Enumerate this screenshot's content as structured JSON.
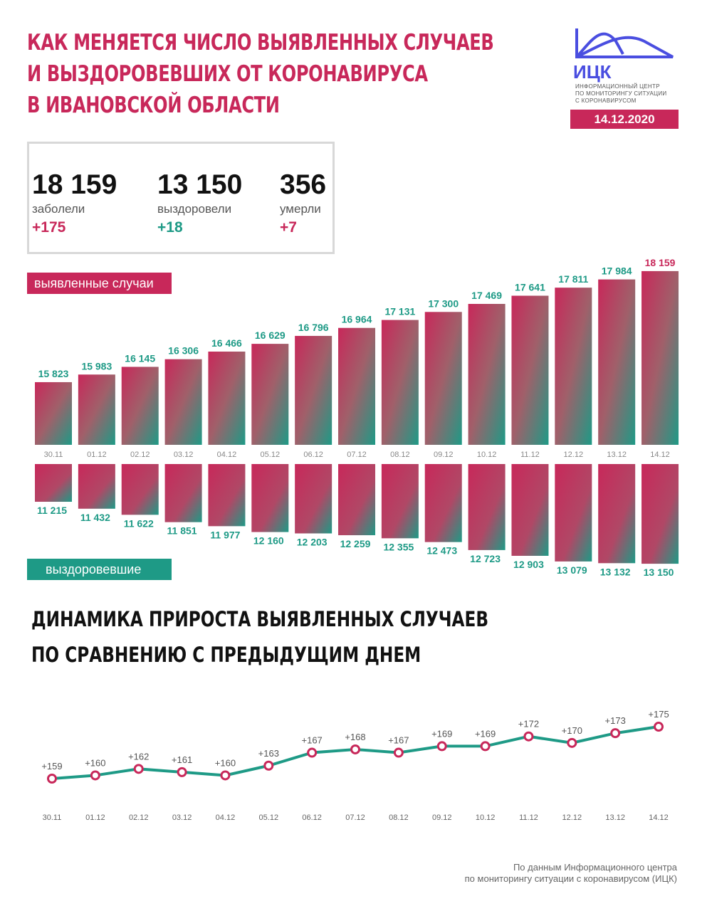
{
  "header": {
    "title_lines": [
      "КАК МЕНЯЕТСЯ ЧИСЛО ВЫЯВЛЕННЫХ СЛУЧАЕВ",
      "И ВЫЗДОРОВЕВШИХ ОТ КОРОНАВИРУСА",
      "В ИВАНОВСКОЙ ОБЛАСТИ"
    ],
    "logo_abbr": "ИЦК",
    "logo_sub": [
      "ИНФОРМАЦИОННЫЙ ЦЕНТР",
      "ПО МОНИТОРИНГУ СИТУАЦИИ",
      "С КОРОНАВИРУСОМ"
    ],
    "date": "14.12.2020"
  },
  "stats": [
    {
      "value": "18 159",
      "label": "заболели",
      "delta": "+175",
      "color": "#c8285a"
    },
    {
      "value": "13 150",
      "label": "выздоровели",
      "delta": "+18",
      "color": "#1e9a86"
    },
    {
      "value": "356",
      "label": "умерли",
      "delta": "+7",
      "color": "#c8285a"
    }
  ],
  "colors": {
    "red": "#c8285a",
    "teal": "#1e9a86"
  },
  "chart_data": [
    {
      "type": "bar",
      "title": "выявленные случаи",
      "categories": [
        "30.11",
        "01.12",
        "02.12",
        "03.12",
        "04.12",
        "05.12",
        "06.12",
        "07.12",
        "08.12",
        "09.12",
        "10.12",
        "11.12",
        "12.12",
        "13.12",
        "14.12"
      ],
      "values": [
        15823,
        15983,
        16145,
        16306,
        16466,
        16629,
        16796,
        16964,
        17131,
        17300,
        17469,
        17641,
        17811,
        17984,
        18159
      ],
      "labels": [
        "15 823",
        "15 983",
        "16 145",
        "16 306",
        "16 466",
        "16 629",
        "16 796",
        "16 964",
        "17 131",
        "17 300",
        "17 469",
        "17 641",
        "17 811",
        "17 984",
        "18 159"
      ]
    },
    {
      "type": "bar",
      "title": "выздоровевшие",
      "orientation": "downward",
      "values": [
        11215,
        11432,
        11622,
        11851,
        11977,
        12160,
        12203,
        12259,
        12355,
        12473,
        12723,
        12903,
        13079,
        13132,
        13150
      ],
      "labels": [
        "11 215",
        "11 432",
        "11 622",
        "11 851",
        "11 977",
        "12 160",
        "12 203",
        "12 259",
        "12 355",
        "12 473",
        "12 723",
        "12 903",
        "13 079",
        "13 132",
        "13 150"
      ]
    },
    {
      "type": "line",
      "title_lines": [
        "ДИНАМИКА ПРИРОСТА ВЫЯВЛЕННЫХ СЛУЧАЕВ",
        "ПО СРАВНЕНИЮ С ПРЕДЫДУЩИМ ДНЕМ"
      ],
      "categories": [
        "30.11",
        "01.12",
        "02.12",
        "03.12",
        "04.12",
        "05.12",
        "06.12",
        "07.12",
        "08.12",
        "09.12",
        "10.12",
        "11.12",
        "12.12",
        "13.12",
        "14.12"
      ],
      "values": [
        159,
        160,
        162,
        161,
        160,
        163,
        167,
        168,
        167,
        169,
        169,
        172,
        170,
        173,
        175
      ],
      "labels": [
        "+159",
        "+160",
        "+162",
        "+161",
        "+160",
        "+163",
        "+167",
        "+168",
        "+167",
        "+169",
        "+169",
        "+172",
        "+170",
        "+173",
        "+175"
      ]
    }
  ],
  "source": [
    "По данным Информационного центра",
    "по мониторингу ситуации с коронавирусом (ИЦК)"
  ]
}
